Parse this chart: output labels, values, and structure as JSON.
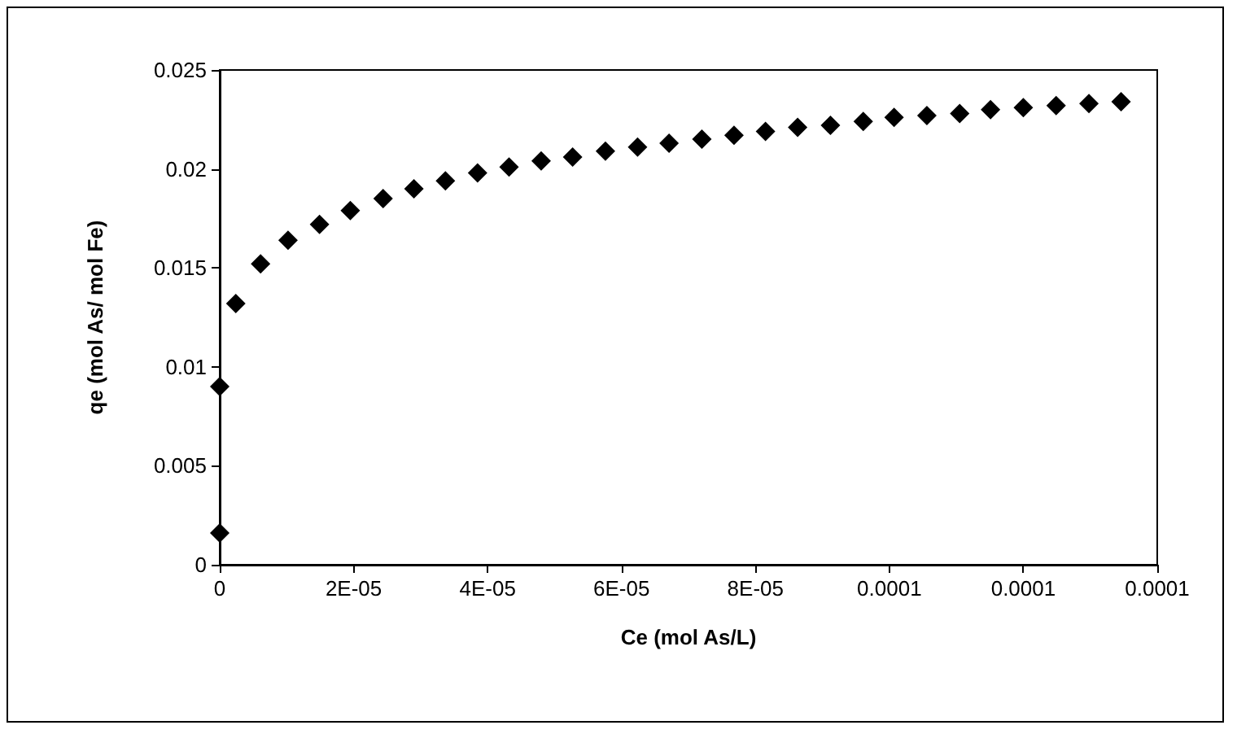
{
  "chart_data": {
    "type": "scatter",
    "xlabel": "Ce (mol As/L)",
    "ylabel": "qe (mol As/ mol Fe)",
    "x": [
      0,
      0,
      2.4e-06,
      6.1e-06,
      1.02e-05,
      1.49e-05,
      1.95e-05,
      2.44e-05,
      2.9e-05,
      3.37e-05,
      3.85e-05,
      4.32e-05,
      4.8e-05,
      5.27e-05,
      5.76e-05,
      6.24e-05,
      6.71e-05,
      7.2e-05,
      7.68e-05,
      8.15e-05,
      8.63e-05,
      9.12e-05,
      9.61e-05,
      0.0001007,
      0.0001056,
      0.0001105,
      0.0001151,
      0.00012,
      0.0001249,
      0.0001298,
      0.0001346
    ],
    "values": [
      0.0016,
      0.009,
      0.0132,
      0.0152,
      0.0164,
      0.0172,
      0.0179,
      0.0185,
      0.019,
      0.0194,
      0.0198,
      0.0201,
      0.0204,
      0.0206,
      0.0209,
      0.0211,
      0.0213,
      0.0215,
      0.0217,
      0.0219,
      0.0221,
      0.0222,
      0.0224,
      0.0226,
      0.0227,
      0.0228,
      0.023,
      0.0231,
      0.0232,
      0.0233,
      0.0234
    ],
    "color": "#000000",
    "marker": "diamond",
    "grid": false,
    "xlim": [
      0,
      0.00014
    ],
    "xticks": [
      0,
      {
        "value": 2e-05,
        "label": "2E-05"
      },
      {
        "value": 4e-05,
        "label": "4E-05"
      },
      {
        "value": 6e-05,
        "label": "6E-05"
      },
      {
        "value": 8e-05,
        "label": "8E-05"
      },
      0.0001,
      {
        "value": 0.00012,
        "label": "0.0001"
      },
      {
        "value": 0.00014,
        "label": "0.0001"
      }
    ],
    "ylim": [
      0,
      0.025
    ],
    "yticks": [
      0,
      0.005,
      0.01,
      0.015,
      0.02,
      0.025
    ]
  }
}
